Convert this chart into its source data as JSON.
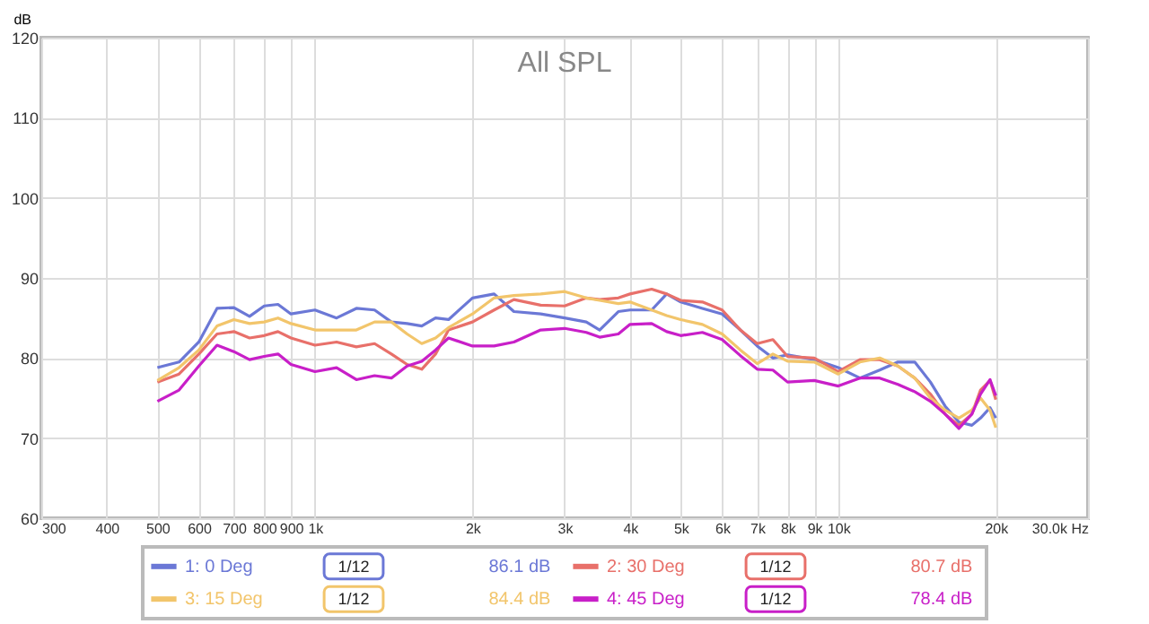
{
  "chart_data": {
    "type": "line",
    "title": "All SPL",
    "ylabel": "dB",
    "x": [
      500,
      550,
      600,
      650,
      700,
      750,
      800,
      850,
      900,
      1000,
      1100,
      1200,
      1300,
      1400,
      1500,
      1600,
      1700,
      1800,
      2000,
      2200,
      2400,
      2700,
      3000,
      3300,
      3500,
      3800,
      4000,
      4400,
      4700,
      5000,
      5500,
      6000,
      6500,
      7000,
      7500,
      8000,
      9000,
      10000,
      11000,
      12000,
      13000,
      14000,
      15000,
      16000,
      17000,
      18000,
      18700,
      19500,
      20000
    ],
    "series": [
      {
        "name": "1: 0 Deg",
        "color": "#6b78d6",
        "values": [
          78.8,
          79.5,
          82,
          86.2,
          86.3,
          85.2,
          86.5,
          86.7,
          85.5,
          86,
          85,
          86.2,
          86,
          84.5,
          84.3,
          84,
          85,
          84.8,
          87.5,
          88,
          85.8,
          85.5,
          85,
          84.5,
          83.5,
          85.8,
          86,
          86,
          88,
          87,
          86.2,
          85.5,
          83.5,
          81.5,
          80,
          80.4,
          79.8,
          78.8,
          77.5,
          78.5,
          79.5,
          79.5,
          77,
          74,
          72,
          71.6,
          72.5,
          73.8,
          72.5
        ]
      },
      {
        "name": "2: 30 Deg",
        "color": "#e8706a",
        "values": [
          77,
          78,
          80.5,
          83,
          83.3,
          82.5,
          82.8,
          83.3,
          82.5,
          81.6,
          82,
          81.4,
          81.8,
          80.5,
          79.2,
          78.6,
          80.5,
          83.5,
          84.5,
          86,
          87.3,
          86.6,
          86.5,
          87.5,
          87.3,
          87.5,
          88,
          88.6,
          88,
          87.2,
          87,
          86,
          83.5,
          81.8,
          82.3,
          80.2,
          80,
          78.3,
          79.8,
          79.8,
          79,
          77.5,
          75.5,
          73,
          71.6,
          73,
          76,
          77.2,
          74.8
        ]
      },
      {
        "name": "3: 15 Deg",
        "color": "#f2c56b",
        "values": [
          77.2,
          78.8,
          81,
          84,
          84.8,
          84.3,
          84.5,
          85,
          84.3,
          83.5,
          83.5,
          83.5,
          84.5,
          84.5,
          83,
          81.8,
          82.5,
          83.8,
          85.5,
          87.5,
          87.8,
          88,
          88.3,
          87.5,
          87.2,
          86.8,
          87,
          86,
          85.3,
          84.8,
          84.2,
          83,
          81,
          79.3,
          80.5,
          79.6,
          79.5,
          78,
          79.5,
          80,
          79,
          77.5,
          75,
          73.5,
          72.5,
          73.5,
          75,
          73.5,
          71.3
        ]
      },
      {
        "name": "4: 45 Deg",
        "color": "#c81fc8",
        "values": [
          74.6,
          76,
          79,
          81.6,
          80.8,
          79.8,
          80.2,
          80.5,
          79.2,
          78.3,
          78.8,
          77.3,
          77.8,
          77.5,
          79,
          79.6,
          81,
          82.5,
          81.5,
          81.5,
          82,
          83.5,
          83.7,
          83.2,
          82.6,
          83,
          84.2,
          84.3,
          83.3,
          82.8,
          83.2,
          82.3,
          80.3,
          78.6,
          78.5,
          77,
          77.2,
          76.5,
          77.5,
          77.5,
          76.7,
          75.8,
          74.6,
          73,
          71.2,
          73,
          75.5,
          77.3,
          75.3
        ]
      }
    ],
    "annotations": [
      "1/12",
      "86.1 dB",
      "1/12",
      "80.7 dB",
      "1/12",
      "84.4 dB",
      "1/12",
      "78.4 dB"
    ],
    "xlim": [
      300,
      30000
    ],
    "xticks": [
      300,
      400,
      500,
      600,
      700,
      800,
      900,
      {
        "value": 1000,
        "label": "1k"
      },
      {
        "value": 2000,
        "label": "2k"
      },
      {
        "value": 3000,
        "label": "3k"
      },
      {
        "value": 4000,
        "label": "4k"
      },
      {
        "value": 5000,
        "label": "5k"
      },
      {
        "value": 6000,
        "label": "6k"
      },
      {
        "value": 7000,
        "label": "7k"
      },
      {
        "value": 8000,
        "label": "8k"
      },
      {
        "value": 9000,
        "label": "9k"
      },
      {
        "value": 10000,
        "label": "10k"
      },
      {
        "value": 20000,
        "label": "20k"
      },
      {
        "value": 30000,
        "label": "30.0k Hz"
      }
    ],
    "ylim": [
      60,
      120
    ],
    "yticks": [
      60,
      70,
      80,
      90,
      100,
      110,
      120
    ],
    "log": "x",
    "grid": true,
    "legend": "bottom",
    "marker": "none",
    "line_style": "solid"
  }
}
